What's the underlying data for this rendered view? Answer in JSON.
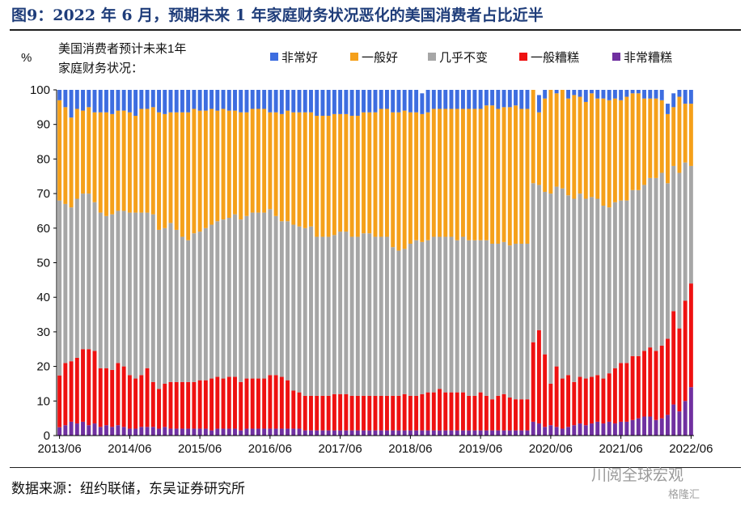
{
  "header": {
    "title": "图9：2022 年 6 月，预期未来 1 年家庭财务状况恶化的美国消费者占比近半"
  },
  "footer": {
    "source": "数据来源：纽约联储，东吴证券研究所",
    "watermark": "川阅全球宏观",
    "watermark2": "格隆汇"
  },
  "chart_data": {
    "type": "bar",
    "stacked": true,
    "ylabel": "%",
    "subtitle_line1": "美国消费者预计未来1年",
    "subtitle_line2": "家庭财务状况：",
    "ylim": [
      0,
      100
    ],
    "yticks": [
      0,
      10,
      20,
      30,
      40,
      50,
      60,
      70,
      80,
      90,
      100
    ],
    "xtick_labels": [
      "2013/06",
      "2014/06",
      "2015/06",
      "2016/06",
      "2017/06",
      "2018/06",
      "2019/06",
      "2020/06",
      "2021/06",
      "2022/06"
    ],
    "legend_position": "top",
    "grid": false,
    "series": [
      {
        "name": "非常好",
        "color": "#3d6de0"
      },
      {
        "name": "一般好",
        "color": "#f5a01a"
      },
      {
        "name": "几乎不变",
        "color": "#a6a6a6"
      },
      {
        "name": "一般糟糕",
        "color": "#ee1111"
      },
      {
        "name": "非常糟糕",
        "color": "#7030a0"
      }
    ],
    "x": [
      "2013/06",
      "2013/07",
      "2013/08",
      "2013/09",
      "2013/10",
      "2013/11",
      "2013/12",
      "2014/01",
      "2014/02",
      "2014/03",
      "2014/04",
      "2014/05",
      "2014/06",
      "2014/07",
      "2014/08",
      "2014/09",
      "2014/10",
      "2014/11",
      "2014/12",
      "2015/01",
      "2015/02",
      "2015/03",
      "2015/04",
      "2015/05",
      "2015/06",
      "2015/07",
      "2015/08",
      "2015/09",
      "2015/10",
      "2015/11",
      "2015/12",
      "2016/01",
      "2016/02",
      "2016/03",
      "2016/04",
      "2016/05",
      "2016/06",
      "2016/07",
      "2016/08",
      "2016/09",
      "2016/10",
      "2016/11",
      "2016/12",
      "2017/01",
      "2017/02",
      "2017/03",
      "2017/04",
      "2017/05",
      "2017/06",
      "2017/07",
      "2017/08",
      "2017/09",
      "2017/10",
      "2017/11",
      "2017/12",
      "2018/01",
      "2018/02",
      "2018/03",
      "2018/04",
      "2018/05",
      "2018/06",
      "2018/07",
      "2018/08",
      "2018/09",
      "2018/10",
      "2018/11",
      "2018/12",
      "2019/01",
      "2019/02",
      "2019/03",
      "2019/04",
      "2019/05",
      "2019/06",
      "2019/07",
      "2019/08",
      "2019/09",
      "2019/10",
      "2019/11",
      "2019/12",
      "2020/01",
      "2020/02",
      "2020/03",
      "2020/04",
      "2020/05",
      "2020/06",
      "2020/07",
      "2020/08",
      "2020/09",
      "2020/10",
      "2020/11",
      "2020/12",
      "2021/01",
      "2021/02",
      "2021/03",
      "2021/04",
      "2021/05",
      "2021/06",
      "2021/07",
      "2021/08",
      "2021/09",
      "2021/10",
      "2021/11",
      "2021/12",
      "2022/01",
      "2022/02",
      "2022/03",
      "2022/04",
      "2022/05",
      "2022/06"
    ],
    "values": {
      "非常糟糕": [
        2.4,
        3,
        4,
        3.5,
        4,
        3,
        3.5,
        2.5,
        3,
        2.5,
        3,
        2.5,
        2,
        2,
        2.5,
        2.5,
        2.5,
        2,
        2.5,
        2,
        2,
        2,
        2,
        2,
        2,
        2,
        1.5,
        2,
        2,
        2,
        2,
        1.5,
        2,
        2,
        2,
        2,
        2,
        2,
        2,
        2,
        2,
        2,
        1.5,
        1.5,
        1.5,
        1.5,
        1.5,
        1.5,
        1.5,
        1.5,
        1.5,
        1.5,
        1.5,
        1.5,
        1.5,
        1.5,
        1.5,
        1.5,
        1.5,
        1.5,
        1.5,
        1.5,
        1.5,
        1.5,
        1.5,
        1.5,
        1.5,
        1.5,
        1.5,
        1.5,
        1.5,
        1.5,
        1.5,
        1.5,
        1.5,
        1.5,
        1.5,
        1.5,
        1.5,
        1.5,
        1.5,
        4,
        3.5,
        2.5,
        3,
        2.5,
        2,
        2.5,
        3,
        3.5,
        3,
        3.5,
        4,
        3.5,
        4,
        3.5,
        4,
        4,
        4.5,
        5,
        5.5,
        5.5,
        4.5,
        5,
        6,
        9,
        7,
        10,
        14
      ],
      "一般糟糕": [
        15,
        18,
        17.5,
        19,
        21,
        22,
        21,
        17,
        16.5,
        16.5,
        18,
        17.5,
        15.5,
        14.5,
        15,
        17,
        13,
        11.5,
        12.5,
        13.5,
        13.5,
        13.5,
        13.5,
        13.5,
        14,
        14,
        15,
        15,
        14.5,
        15,
        15,
        14,
        14.5,
        14.5,
        14.5,
        14.5,
        15.5,
        15.5,
        15,
        14,
        11,
        10.5,
        10,
        10,
        10,
        10,
        10,
        10.5,
        10.5,
        10.5,
        10,
        10,
        10,
        10,
        10,
        10,
        10,
        10,
        10,
        10.5,
        10,
        10,
        10.5,
        11,
        11,
        12,
        11,
        11,
        11,
        11,
        10,
        10,
        11,
        10,
        9,
        10,
        10.5,
        9.5,
        9,
        9,
        9,
        23,
        27,
        21,
        12,
        17.5,
        14.5,
        15,
        12.5,
        13.5,
        13.5,
        13.5,
        13.5,
        13,
        14,
        16,
        17,
        17,
        18.5,
        18,
        19,
        20,
        20,
        21,
        22,
        27,
        24,
        29,
        30
      ],
      "几乎不变": [
        50.6,
        46,
        44.5,
        46,
        45,
        45,
        43,
        45,
        44,
        45,
        44,
        45,
        47,
        48,
        47,
        45,
        48.5,
        46,
        45,
        46,
        44,
        42,
        41,
        43,
        43,
        44,
        44.5,
        45,
        46,
        46,
        47,
        47,
        47,
        48,
        48,
        48,
        48,
        46,
        45,
        46,
        48,
        48,
        48.5,
        49,
        46,
        46,
        46,
        46,
        47,
        47,
        46,
        46,
        47,
        47,
        46,
        46,
        46,
        43,
        42,
        42,
        44,
        45,
        44,
        44,
        45,
        44,
        45,
        45,
        44,
        45,
        45,
        45,
        44,
        45,
        45,
        44,
        44,
        44,
        45,
        45,
        45,
        46,
        42,
        47,
        55,
        52,
        55,
        52,
        53,
        53,
        52,
        52,
        51,
        50,
        48,
        48,
        47,
        47,
        48,
        48,
        48,
        49,
        50,
        50,
        45,
        42,
        45,
        40,
        34
      ],
      "一般好": [
        29,
        28,
        26,
        26,
        24,
        25,
        26,
        29,
        30,
        29,
        29,
        29,
        29,
        28,
        30,
        30,
        31,
        34,
        33,
        32,
        34,
        36,
        37,
        36,
        35,
        34,
        33.5,
        32,
        32,
        31,
        30,
        31,
        30,
        30,
        30,
        30,
        28,
        30,
        31,
        32,
        32.5,
        33,
        33.5,
        33,
        35,
        35,
        35,
        35,
        34,
        34,
        35,
        35,
        35,
        35,
        36,
        37,
        37,
        39,
        40,
        40,
        38,
        37,
        37,
        37,
        37,
        37,
        37,
        37,
        38,
        37,
        38,
        38,
        38,
        39,
        40,
        39,
        39,
        40,
        40,
        39,
        39,
        27,
        21,
        27,
        34,
        27,
        31,
        28,
        30,
        28,
        28,
        30,
        29,
        31,
        31,
        30,
        29,
        30,
        28,
        28,
        25,
        23,
        23,
        21,
        20,
        17,
        22,
        17,
        18
      ],
      "非常好": [
        3,
        5,
        8,
        5.5,
        6,
        5,
        6.5,
        6.5,
        6.5,
        7,
        6,
        6,
        6.5,
        7.5,
        5.5,
        5.5,
        5,
        6.5,
        7,
        6.5,
        6.5,
        6.5,
        6.5,
        5.5,
        6,
        6,
        5.5,
        6,
        5.5,
        6,
        6,
        6.5,
        6.5,
        5.5,
        5.5,
        5.5,
        6.5,
        6.5,
        7,
        6,
        6.5,
        6.5,
        6.5,
        6.5,
        7.5,
        7.5,
        7.5,
        7,
        7,
        7,
        7.5,
        7.5,
        6.5,
        6.5,
        6.5,
        5.5,
        5.5,
        6.5,
        6.5,
        6,
        6.5,
        6.5,
        6,
        6.5,
        5.5,
        5.5,
        5.5,
        5.5,
        5.5,
        5.5,
        5.5,
        5.5,
        5.5,
        5.5,
        4.5,
        5.5,
        5,
        5,
        5.5,
        5.5,
        5.5,
        5,
        5,
        5,
        5,
        5,
        6,
        6,
        5,
        5,
        5,
        4,
        4.5,
        4.5,
        5,
        4.5,
        3,
        3,
        3,
        3,
        3.5,
        3.5,
        3.5,
        3.5,
        3,
        4,
        3,
        4,
        4
      ]
    }
  }
}
